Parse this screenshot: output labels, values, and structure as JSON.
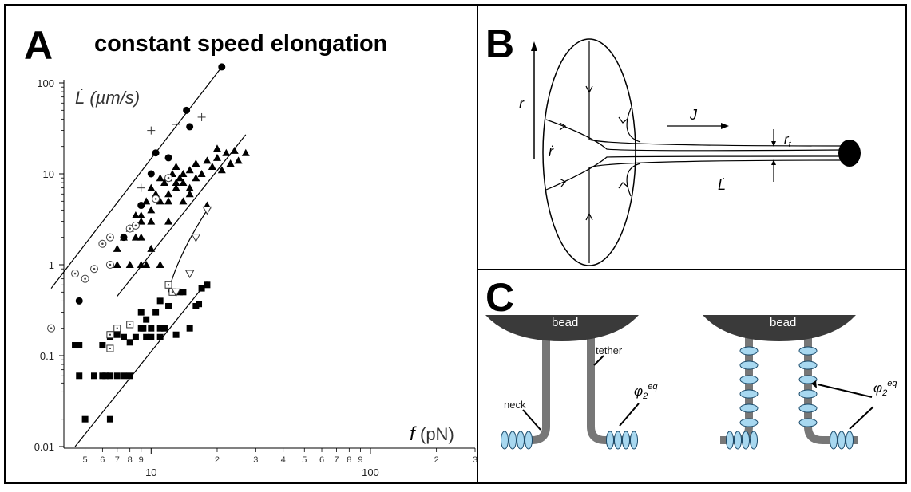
{
  "panels": {
    "A": {
      "letter": "A",
      "title": "constant speed elongation",
      "ylabel": "L̇ (µm/s)",
      "xlabel_italic": "f",
      "xlabel_unit": " (pN)",
      "y_tick_labels": [
        "100",
        "10",
        "1",
        "0.1",
        "0.01"
      ],
      "x_major_labels": [
        "10",
        "100"
      ],
      "x_minor_labels": [
        "5",
        "6",
        "7",
        "8",
        "9",
        "2",
        "3",
        "4",
        "5",
        "6",
        "7",
        "8",
        "9",
        "2",
        "3"
      ]
    },
    "B": {
      "letter": "B",
      "label_r": "r",
      "label_rdot": "ṙ",
      "label_J": "J",
      "label_rt": "r",
      "label_rt_sub": "t",
      "label_Ldot": "L̇"
    },
    "C": {
      "letter": "C",
      "bead_left": "bead",
      "bead_right": "bead",
      "label_tether": "tether",
      "label_neck": "neck",
      "label_phi_left": "φ",
      "label_phi_right": "φ",
      "phi_sub": "2",
      "phi_sup": "eq"
    }
  },
  "colors": {
    "frame": "#000000",
    "bead": "#3a3a3a",
    "tether": "#7a7a7a",
    "protein": "#a8d8f0",
    "protein_stroke": "#1a4a6a"
  },
  "chart_data": {
    "type": "scatter",
    "xscale": "log",
    "yscale": "log",
    "xlim": [
      4,
      300
    ],
    "ylim": [
      0.01,
      100
    ],
    "xlabel": "f (pN)",
    "ylabel": "L̇ (µm/s)",
    "title": "constant speed elongation",
    "series": [
      {
        "marker": "triangle",
        "points": [
          [
            7,
            1
          ],
          [
            7,
            1.5
          ],
          [
            7.5,
            2
          ],
          [
            8,
            2.5
          ],
          [
            8,
            1
          ],
          [
            8.5,
            3.5
          ],
          [
            8.5,
            2
          ],
          [
            9,
            3
          ],
          [
            9,
            2
          ],
          [
            9,
            1
          ],
          [
            9,
            3.5
          ],
          [
            9.5,
            5
          ],
          [
            9.5,
            1
          ],
          [
            10,
            1.5
          ],
          [
            10,
            4
          ],
          [
            10,
            3
          ],
          [
            10,
            7
          ],
          [
            10.5,
            6
          ],
          [
            11,
            9
          ],
          [
            11,
            5
          ],
          [
            11,
            1
          ],
          [
            11.5,
            8
          ],
          [
            12,
            9
          ],
          [
            12,
            6
          ],
          [
            12,
            3
          ],
          [
            12,
            5
          ],
          [
            12.5,
            10
          ],
          [
            13,
            12
          ],
          [
            13,
            8
          ],
          [
            13,
            7
          ],
          [
            13.5,
            9
          ],
          [
            14,
            5
          ],
          [
            14,
            8
          ],
          [
            14,
            10
          ],
          [
            15,
            11
          ],
          [
            15,
            6
          ],
          [
            15,
            7
          ],
          [
            16,
            13
          ],
          [
            16,
            9
          ],
          [
            17,
            10
          ],
          [
            18,
            4.5
          ],
          [
            18,
            14
          ],
          [
            19,
            12
          ],
          [
            20,
            15
          ],
          [
            20,
            19
          ],
          [
            21,
            11
          ],
          [
            22,
            17
          ],
          [
            23,
            13
          ],
          [
            24,
            18
          ],
          [
            25,
            14
          ],
          [
            27,
            17
          ]
        ]
      },
      {
        "marker": "circle-filled",
        "points": [
          [
            4.7,
            0.4
          ],
          [
            7.5,
            2
          ],
          [
            9,
            4.5
          ],
          [
            10,
            10
          ],
          [
            10.5,
            17
          ],
          [
            12,
            15
          ],
          [
            14.5,
            50
          ],
          [
            15,
            33
          ],
          [
            21,
            150
          ]
        ]
      },
      {
        "marker": "circle-dotted",
        "points": [
          [
            3.5,
            0.2
          ],
          [
            4.5,
            0.8
          ],
          [
            5,
            0.7
          ],
          [
            5.5,
            0.9
          ],
          [
            6,
            1.7
          ],
          [
            6.5,
            1
          ],
          [
            6.5,
            2
          ],
          [
            8,
            2.5
          ],
          [
            8.5,
            2.7
          ],
          [
            10.5,
            5.3
          ],
          [
            12,
            9
          ]
        ]
      },
      {
        "marker": "plus",
        "points": [
          [
            9,
            7
          ],
          [
            13,
            35
          ],
          [
            17,
            42
          ],
          [
            10,
            30
          ]
        ]
      },
      {
        "marker": "square-filled",
        "points": [
          [
            4.5,
            0.13
          ],
          [
            4.7,
            0.13
          ],
          [
            4.7,
            0.06
          ],
          [
            5,
            0.02
          ],
          [
            5.5,
            0.06
          ],
          [
            6,
            0.13
          ],
          [
            6,
            0.06
          ],
          [
            6.2,
            0.06
          ],
          [
            6.5,
            0.02
          ],
          [
            6.5,
            0.06
          ],
          [
            6.5,
            0.16
          ],
          [
            7,
            0.06
          ],
          [
            7,
            0.17
          ],
          [
            7.5,
            0.06
          ],
          [
            7.5,
            0.16
          ],
          [
            8,
            0.06
          ],
          [
            8,
            0.14
          ],
          [
            8.5,
            0.16
          ],
          [
            9,
            0.2
          ],
          [
            9,
            0.3
          ],
          [
            9.2,
            0.2
          ],
          [
            9.5,
            0.16
          ],
          [
            9.5,
            0.25
          ],
          [
            10,
            0.2
          ],
          [
            10,
            0.16
          ],
          [
            10.5,
            0.3
          ],
          [
            11,
            0.4
          ],
          [
            11,
            0.2
          ],
          [
            11,
            0.16
          ],
          [
            11.5,
            0.2
          ],
          [
            12,
            0.35
          ],
          [
            13,
            0.17
          ],
          [
            13.5,
            0.5
          ],
          [
            14,
            0.5
          ],
          [
            15,
            0.2
          ],
          [
            16,
            0.35
          ],
          [
            16.5,
            0.37
          ],
          [
            17,
            0.55
          ],
          [
            18,
            0.6
          ]
        ]
      },
      {
        "marker": "square-dotted",
        "points": [
          [
            6.5,
            0.12
          ],
          [
            6.5,
            0.17
          ],
          [
            7,
            0.2
          ],
          [
            8,
            0.22
          ],
          [
            12,
            0.6
          ],
          [
            12.5,
            0.5
          ]
        ]
      },
      {
        "marker": "triangle-down-open",
        "points": [
          [
            13,
            0.5
          ],
          [
            15,
            0.8
          ],
          [
            16,
            2
          ],
          [
            18,
            4
          ]
        ]
      }
    ],
    "fit_lines": [
      {
        "from": [
          7,
          0.45
        ],
        "to": [
          27,
          27
        ]
      },
      {
        "from": [
          3.5,
          0.55
        ],
        "to": [
          21,
          150
        ]
      },
      {
        "from": [
          4.5,
          0.01
        ],
        "to": [
          18,
          0.65
        ]
      },
      {
        "from": [
          12,
          0.5
        ],
        "to": [
          18,
          4
        ],
        "curved": true
      }
    ]
  }
}
